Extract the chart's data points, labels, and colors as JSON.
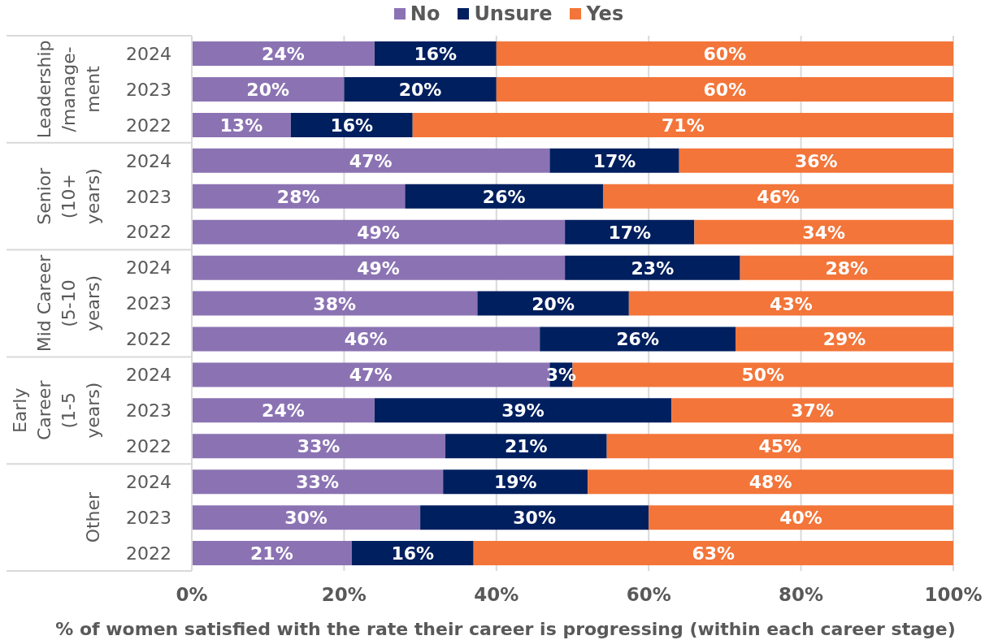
{
  "chart_data": {
    "type": "bar",
    "orientation": "horizontal",
    "stacked": true,
    "categories": [
      "2024",
      "2023",
      "2022",
      "2024",
      "2023",
      "2022",
      "2024",
      "2023",
      "2022",
      "2024",
      "2023",
      "2022",
      "2024",
      "2023",
      "2022"
    ],
    "series": [
      {
        "name": "No",
        "color": "#8b73b3",
        "values": [
          24,
          20,
          13,
          47,
          28,
          49,
          49,
          37.5,
          45.7,
          47,
          24,
          33.3,
          33,
          30,
          21
        ],
        "value_labels": [
          "24%",
          "20%",
          "13%",
          "47%",
          "28%",
          "49%",
          "49%",
          "38%",
          "46%",
          "47%",
          "24%",
          "33%",
          "33%",
          "30%",
          "21%"
        ]
      },
      {
        "name": "Unsure",
        "color": "#001f5f",
        "values": [
          16,
          20,
          16,
          17,
          26,
          17,
          23,
          19.9,
          25.7,
          3,
          39,
          21.2,
          19,
          30,
          16
        ],
        "value_labels": [
          "16%",
          "20%",
          "16%",
          "17%",
          "26%",
          "17%",
          "23%",
          "20%",
          "26%",
          "3%",
          "39%",
          "21%",
          "19%",
          "30%",
          "16%"
        ]
      },
      {
        "name": "Yes",
        "color": "#f37539",
        "values": [
          60,
          60,
          71,
          36,
          46,
          34,
          28,
          42.6,
          28.6,
          50,
          37,
          45.5,
          48,
          40,
          63
        ],
        "value_labels": [
          "60%",
          "60%",
          "71%",
          "36%",
          "46%",
          "34%",
          "28%",
          "43%",
          "29%",
          "50%",
          "37%",
          "45%",
          "48%",
          "40%",
          "63%"
        ]
      }
    ],
    "xlabel": "% of women satisfied with the rate their career is progressing (within each career stage)",
    "xlim": [
      0,
      100
    ],
    "xticks": [
      {
        "value": 0,
        "label": "0%"
      },
      {
        "value": 20,
        "label": "20%"
      },
      {
        "value": 40,
        "label": "40%"
      },
      {
        "value": 60,
        "label": "60%"
      },
      {
        "value": 80,
        "label": "80%"
      },
      {
        "value": 100,
        "label": "100%"
      }
    ],
    "annotations": [
      "Leadership\n/manage-\nment",
      "Senior\n(10+\nyears)",
      "Mid Career\n(5-10\nyears)",
      "Early\nCareer\n(1-5\nyears)",
      "Other"
    ],
    "grid": "x",
    "legend": "top"
  }
}
